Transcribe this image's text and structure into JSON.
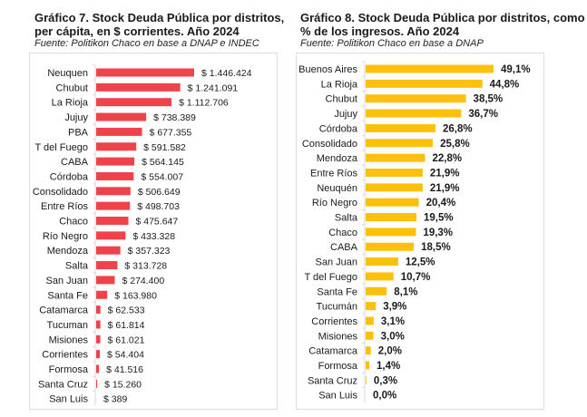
{
  "chart_data": [
    {
      "type": "bar",
      "orientation": "horizontal",
      "title": "Gráfico 7. Stock Deuda Pública por distritos, per cápita, en $ corrientes. Año 2024",
      "title_lines": [
        "Gráfico 7. Stock Deuda Pública por distritos,",
        "per cápita, en $ corrientes. Año 2024"
      ],
      "source": "Fuente: Politikon Chaco en base a DNAP e INDEC",
      "xlabel": "",
      "ylabel": "",
      "color": "#f0424a",
      "grid": false,
      "legend": "none",
      "xlim": [
        0,
        1446424
      ],
      "categories": [
        "Neuquen",
        "Chubut",
        "La Rioja",
        "Jujuy",
        "PBA",
        "T del Fuego",
        "CABA",
        "Córdoba",
        "Consolidado",
        "Entre Ríos",
        "Chaco",
        "Río Negro",
        "Mendoza",
        "Salta",
        "San Juan",
        "Santa Fe",
        "Catamarca",
        "Tucuman",
        "Misiones",
        "Corrientes",
        "Formosa",
        "Santa Cruz",
        "San Luis"
      ],
      "values": [
        1446424,
        1241091,
        1112706,
        738389,
        677355,
        591582,
        564145,
        554007,
        506649,
        498703,
        475647,
        433328,
        357323,
        313728,
        274400,
        163980,
        62533,
        61814,
        61021,
        54404,
        41516,
        15260,
        389
      ],
      "data_labels": [
        "$ 1.446.424",
        "$ 1.241.091",
        "$ 1.112.706",
        "$ 738.389",
        "$ 677.355",
        "$ 591.582",
        "$ 564.145",
        "$ 554.007",
        "$ 506.649",
        "$ 498.703",
        "$ 475.647",
        "$ 433.328",
        "$ 357.323",
        "$ 313.728",
        "$ 274.400",
        "$ 163.980",
        "$ 62.533",
        "$ 61.814",
        "$ 61.021",
        "$ 54.404",
        "$ 41.516",
        "$ 15.260",
        "$ 389"
      ],
      "label_bold": false
    },
    {
      "type": "bar",
      "orientation": "horizontal",
      "title": "Gráfico 8. Stock Deuda Pública por distritos, como % de los ingresos. Año 2024",
      "title_lines": [
        "Gráfico 8. Stock Deuda Pública por distritos, como",
        "% de los ingresos. Año 2024"
      ],
      "source": "Fuente: Politikon Chaco en base a DNAP",
      "xlabel": "",
      "ylabel": "",
      "color": "#fdc00f",
      "grid": false,
      "legend": "none",
      "xlim": [
        0,
        49.1
      ],
      "categories": [
        "Buenos Aires",
        "La Rioja",
        "Chubut",
        "Jujuy",
        "Córdoba",
        "Consolidado",
        "Mendoza",
        "Entre Ríos",
        "Neuquén",
        "Río Negro",
        "Salta",
        "Chaco",
        "CABA",
        "San Juan",
        "T del Fuego",
        "Santa Fe",
        "Tucumán",
        "Corrientes",
        "Misiones",
        "Catamarca",
        "Formosa",
        "Santa Cruz",
        "San Luis"
      ],
      "values": [
        49.1,
        44.8,
        38.5,
        36.7,
        26.8,
        25.8,
        22.8,
        21.9,
        21.9,
        20.4,
        19.5,
        19.3,
        18.5,
        12.5,
        10.7,
        8.1,
        3.9,
        3.1,
        3.0,
        2.0,
        1.4,
        0.3,
        0.0
      ],
      "data_labels": [
        "49,1%",
        "44,8%",
        "38,5%",
        "36,7%",
        "26,8%",
        "25,8%",
        "22,8%",
        "21,9%",
        "21,9%",
        "20,4%",
        "19,5%",
        "19,3%",
        "18,5%",
        "12,5%",
        "10,7%",
        "8,1%",
        "3,9%",
        "3,1%",
        "3,0%",
        "2,0%",
        "1,4%",
        "0,3%",
        "0,0%"
      ],
      "label_bold": true
    }
  ]
}
